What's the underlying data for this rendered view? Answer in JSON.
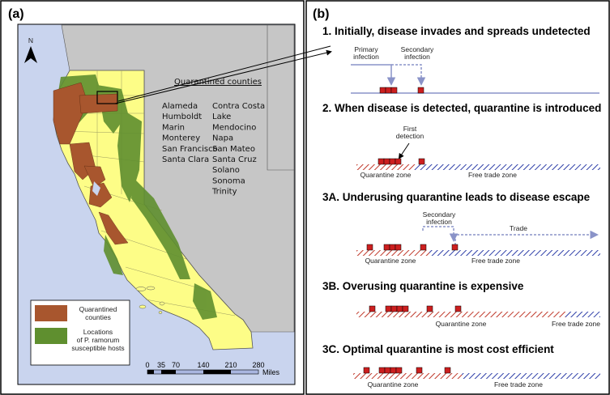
{
  "panel_a": {
    "label": "(a)",
    "north": "N",
    "quarantined_title": "Quarantined counties",
    "counties_col1": [
      "Alameda",
      "Humboldt",
      "Marin",
      "Monterey",
      "San Francisco",
      "Santa Clara"
    ],
    "counties_col2": [
      "Contra Costa",
      "Lake",
      "Mendocino",
      "Napa",
      "San Mateo",
      "Santa Cruz",
      "Solano",
      "Sonoma",
      "Trinity"
    ],
    "legend": {
      "item1_line1": "Quarantined",
      "item1_line2": "counties",
      "item2_line1": "Locations",
      "item2_line2": "of P. ramorum",
      "item2_line3": "susceptible hosts"
    },
    "scale": {
      "ticks": [
        "0",
        "35",
        "70",
        "140",
        "210",
        "280"
      ],
      "unit": "Miles"
    },
    "colors": {
      "quarantine": "#a8562e",
      "hosts": "#5f8f2f",
      "state": "#fdfd87",
      "ocean": "#c9d4ee",
      "land": "#c6c6c6"
    }
  },
  "panel_b": {
    "label": "(b)",
    "s1": {
      "heading": "1.  Initially, disease invades and spreads undetected",
      "primary_1": "Primary",
      "primary_2": "infection",
      "secondary_1": "Secondary",
      "secondary_2": "infection"
    },
    "s2": {
      "heading": "2.  When disease is detected, quarantine is introduced",
      "detect_1": "First",
      "detect_2": "detection",
      "qzone": "Quarantine zone",
      "fzone": "Free trade zone"
    },
    "s3a": {
      "heading": "3A.  Underusing quarantine leads to disease escape",
      "secondary_1": "Secondary",
      "secondary_2": "infection",
      "trade": "Trade",
      "qzone": "Quarantine zone",
      "fzone": "Free trade zone"
    },
    "s3b": {
      "heading": "3B.  Overusing quarantine is expensive",
      "qzone": "Quarantine zone",
      "fzone": "Free trade zone"
    },
    "s3c": {
      "heading": "3C.  Optimal quarantine is most cost efficient",
      "qzone": "Quarantine zone",
      "fzone": "Free trade zone"
    },
    "colors": {
      "red": "#cc1f1f",
      "quarantine_hatch": "#c0392b",
      "free_hatch": "#2e3fa8",
      "arrow": "#8a93c8"
    }
  }
}
